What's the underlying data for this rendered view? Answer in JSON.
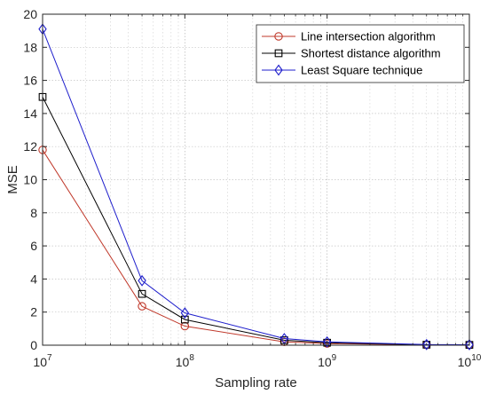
{
  "chart_data": {
    "type": "line",
    "xscale": "log",
    "xlim": [
      10000000,
      10000000000
    ],
    "ylim": [
      0,
      20
    ],
    "yticks": [
      0,
      2,
      4,
      6,
      8,
      10,
      12,
      14,
      16,
      18,
      20
    ],
    "xticks": [
      {
        "value": 10000000,
        "base": "10",
        "exp": "7"
      },
      {
        "value": 100000000,
        "base": "10",
        "exp": "8"
      },
      {
        "value": 1000000000,
        "base": "10",
        "exp": "9"
      },
      {
        "value": 10000000000,
        "base": "10",
        "exp": "10"
      }
    ],
    "xlabel": "Sampling rate",
    "ylabel": "MSE",
    "grid": true,
    "legend_position": "top-right",
    "x": [
      10000000,
      50000000,
      100000000,
      500000000,
      1000000000,
      5000000000,
      10000000000
    ],
    "series": [
      {
        "name": "Line intersection algorithm",
        "color": "#c0392b",
        "marker": "circle",
        "values": [
          11.8,
          2.35,
          1.15,
          0.2,
          0.1,
          0.02,
          0.01
        ]
      },
      {
        "name": "Shortest distance algorithm",
        "color": "#000000",
        "marker": "square",
        "values": [
          15.0,
          3.1,
          1.55,
          0.3,
          0.15,
          0.03,
          0.02
        ]
      },
      {
        "name": "Least Square technique",
        "color": "#1f1fcc",
        "marker": "diamond",
        "values": [
          19.1,
          3.9,
          1.95,
          0.4,
          0.2,
          0.04,
          0.03
        ]
      }
    ]
  }
}
